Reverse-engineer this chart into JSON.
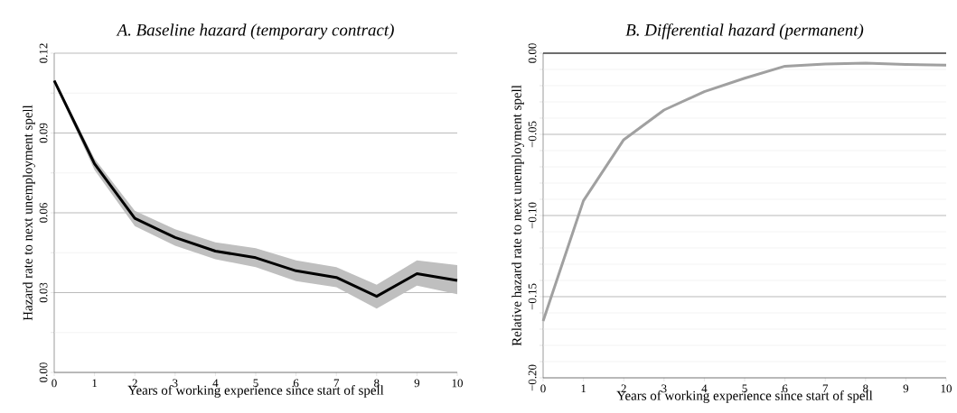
{
  "chart_data": [
    {
      "type": "line",
      "title": "A. Baseline hazard (temporary contract)",
      "xlabel": "Years of working experience since start of spell",
      "ylabel": "Hazard rate to next unemployment spell",
      "x": [
        0,
        1,
        2,
        3,
        4,
        5,
        6,
        7,
        8,
        9,
        10
      ],
      "series": [
        {
          "color": "#000000",
          "values": [
            0.1097,
            0.0784,
            0.0579,
            0.0507,
            0.0456,
            0.0431,
            0.0382,
            0.0357,
            0.0286,
            0.0371,
            0.0346
          ],
          "lower": [
            0.109,
            0.0761,
            0.055,
            0.0476,
            0.0425,
            0.0396,
            0.0343,
            0.032,
            0.024,
            0.0326,
            0.0294
          ],
          "upper": [
            0.1104,
            0.0803,
            0.0608,
            0.0538,
            0.0489,
            0.0467,
            0.0421,
            0.0396,
            0.033,
            0.0421,
            0.0403
          ]
        }
      ],
      "xlim": [
        0,
        10
      ],
      "ylim": [
        0,
        0.12
      ],
      "xticks": [
        0,
        1,
        2,
        3,
        4,
        5,
        6,
        7,
        8,
        9,
        10
      ],
      "yticks": [
        {
          "value": 0,
          "label": "0.00"
        },
        {
          "value": 0.015,
          "label": null
        },
        {
          "value": 0.03,
          "label": "0.03"
        },
        {
          "value": 0.045,
          "label": null
        },
        {
          "value": 0.06,
          "label": "0.06"
        },
        {
          "value": 0.075,
          "label": null
        },
        {
          "value": 0.09,
          "label": "0.09"
        },
        {
          "value": 0.105,
          "label": null
        },
        {
          "value": 0.12,
          "label": "0.12"
        }
      ],
      "grid": "y",
      "marker": "none",
      "line_style": "solid"
    },
    {
      "type": "line",
      "title": "B. Differential hazard (permanent)",
      "xlabel": "Years of working experience since start of spell",
      "ylabel": "Relative hazard rate to next unemployment spell",
      "x": [
        0,
        1,
        2,
        3,
        4,
        5,
        6,
        7,
        8,
        9,
        10
      ],
      "series": [
        {
          "color": "#a0a0a0",
          "values": [
            -0.165,
            -0.0909,
            -0.0533,
            -0.035,
            -0.0237,
            -0.0154,
            -0.008,
            -0.0067,
            -0.0061,
            -0.007,
            -0.0074
          ]
        }
      ],
      "xlim": [
        0,
        10
      ],
      "ylim": [
        -0.2,
        0
      ],
      "xticks": [
        0,
        1,
        2,
        3,
        4,
        5,
        6,
        7,
        8,
        9,
        10
      ],
      "yticks": [
        {
          "value": -0.2,
          "label": "−0.20"
        },
        {
          "value": -0.19,
          "label": null
        },
        {
          "value": -0.18,
          "label": null
        },
        {
          "value": -0.17,
          "label": null
        },
        {
          "value": -0.16,
          "label": null
        },
        {
          "value": -0.15,
          "label": "−0.15"
        },
        {
          "value": -0.14,
          "label": null
        },
        {
          "value": -0.13,
          "label": null
        },
        {
          "value": -0.12,
          "label": null
        },
        {
          "value": -0.11,
          "label": null
        },
        {
          "value": -0.1,
          "label": "−0.10"
        },
        {
          "value": -0.09,
          "label": null
        },
        {
          "value": -0.08,
          "label": null
        },
        {
          "value": -0.07,
          "label": null
        },
        {
          "value": -0.06,
          "label": null
        },
        {
          "value": -0.05,
          "label": "−0.05"
        },
        {
          "value": -0.04,
          "label": null
        },
        {
          "value": -0.03,
          "label": null
        },
        {
          "value": -0.02,
          "label": null
        },
        {
          "value": -0.01,
          "label": null
        },
        {
          "value": 0,
          "label": "0.00"
        }
      ],
      "ref_lines": [
        {
          "axis": "y",
          "value": 0,
          "color": "#000000"
        }
      ],
      "grid": "y",
      "marker": "none",
      "line_style": "solid"
    }
  ]
}
